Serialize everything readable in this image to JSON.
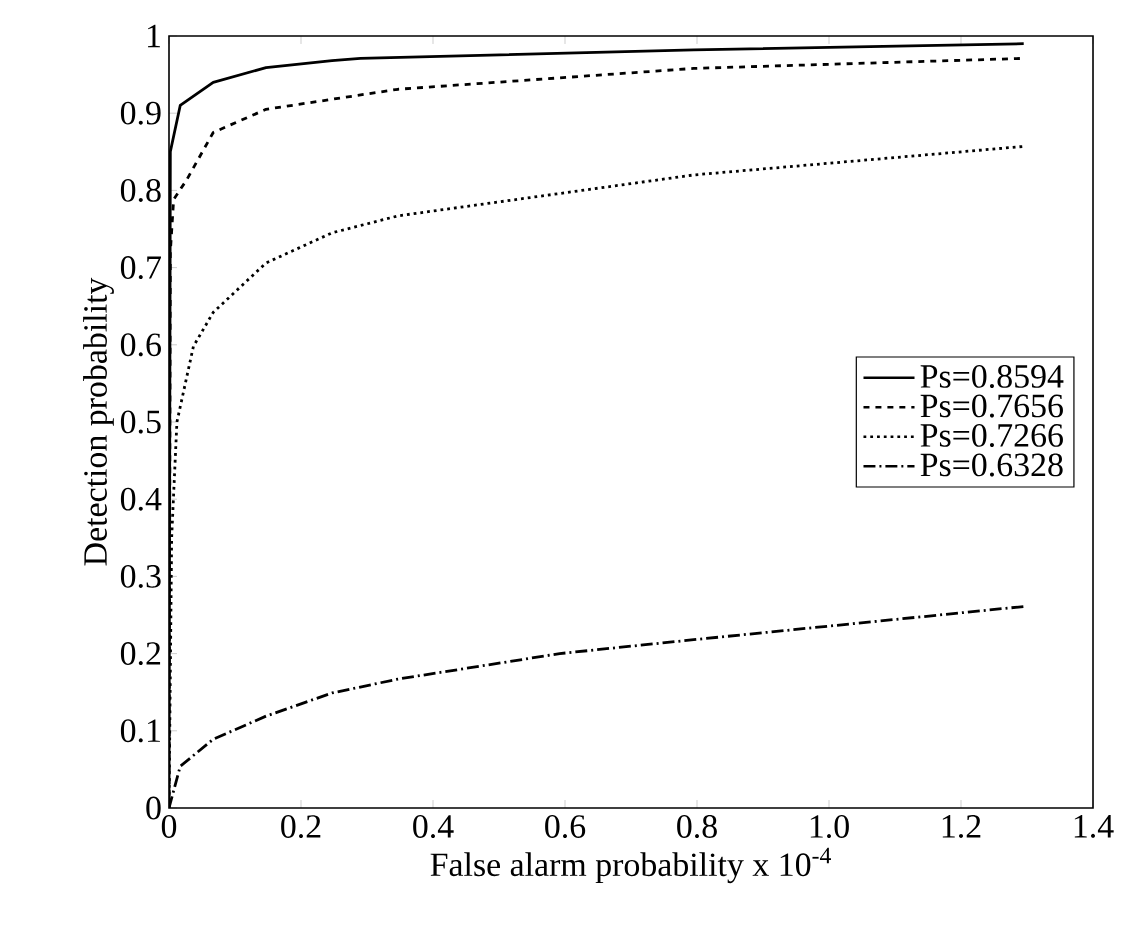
{
  "chart_data": {
    "type": "line",
    "xlabel": "False alarm probability x 10$^{-4}$",
    "ylabel": "Detection probability",
    "xlim": [
      0,
      1.4
    ],
    "ylim": [
      0,
      1
    ],
    "xticks": [
      0,
      0.2,
      0.4,
      0.6,
      0.8,
      {
        "value": 1,
        "label": "1.0"
      },
      1.2,
      1.4
    ],
    "yticks": [
      0,
      0.1,
      0.2,
      0.3,
      0.4,
      0.5,
      0.6,
      0.7,
      0.8,
      0.9,
      1
    ],
    "grid": false,
    "legend": "right",
    "series": [
      {
        "name": "Ps=0.8594",
        "color": "#000000",
        "line_style": "solid",
        "x": [
          0,
          0.002,
          0.017,
          0.067,
          0.147,
          0.247,
          0.29,
          0.795,
          1.295
        ],
        "values": [
          0,
          0.85,
          0.91,
          0.94,
          0.959,
          0.968,
          0.971,
          0.982,
          0.99
        ]
      },
      {
        "name": "Ps=0.7656",
        "color": "#000000",
        "line_style": "dashed",
        "x": [
          0,
          0.002,
          0.007,
          0.027,
          0.067,
          0.147,
          0.247,
          0.347,
          0.795,
          1.295
        ],
        "values": [
          0,
          0.72,
          0.788,
          0.814,
          0.875,
          0.905,
          0.918,
          0.931,
          0.958,
          0.971
        ]
      },
      {
        "name": "Ps=0.7266",
        "color": "#000000",
        "line_style": "dotted",
        "x": [
          0,
          0.004,
          0.012,
          0.037,
          0.067,
          0.147,
          0.247,
          0.347,
          0.795,
          1.295
        ],
        "values": [
          0,
          0.35,
          0.5,
          0.598,
          0.642,
          0.706,
          0.745,
          0.767,
          0.82,
          0.857
        ]
      },
      {
        "name": "Ps=0.6328",
        "color": "#000000",
        "line_style": "dashdot",
        "x": [
          0,
          0.017,
          0.067,
          0.147,
          0.247,
          0.347,
          0.592,
          0.795,
          1.295
        ],
        "values": [
          0,
          0.054,
          0.089,
          0.119,
          0.149,
          0.167,
          0.2,
          0.218,
          0.261
        ]
      }
    ]
  }
}
